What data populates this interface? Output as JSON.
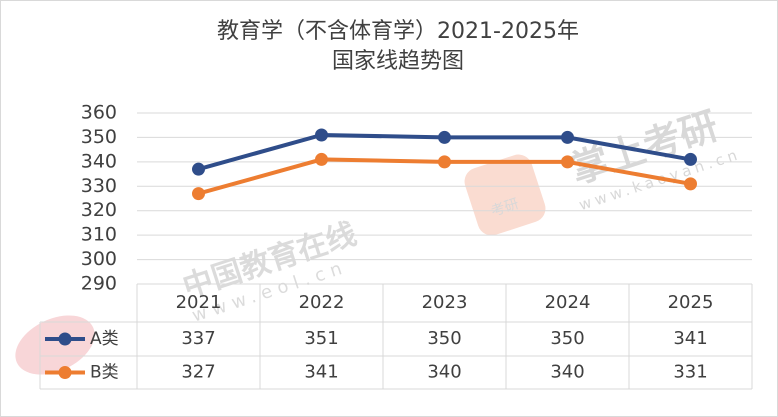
{
  "chart_data": {
    "type": "line",
    "title": "教育学（不含体育学）2021-2025年",
    "subtitle": "国家线趋势图",
    "categories": [
      "2021",
      "2022",
      "2023",
      "2024",
      "2025"
    ],
    "series": [
      {
        "name": "A类",
        "color": "#2f4d8a",
        "values": [
          337,
          351,
          350,
          350,
          341
        ]
      },
      {
        "name": "B类",
        "color": "#ed7d31",
        "values": [
          327,
          341,
          340,
          340,
          331
        ]
      }
    ],
    "ylim": [
      290,
      360
    ],
    "yticks": [
      290,
      300,
      310,
      320,
      330,
      340,
      350,
      360
    ],
    "grid": true,
    "watermarks": [
      "中国教育在线",
      "www.eol.cn",
      "掌上考研",
      "www.kaoyan.cn",
      "考研"
    ]
  }
}
